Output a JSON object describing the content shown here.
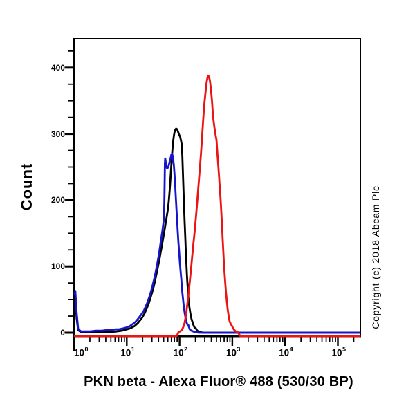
{
  "figure": {
    "background": "#ffffff",
    "copyright": "Copyright (c) 2018 Abcam Plc"
  },
  "chart_data": {
    "type": "line",
    "chart_kind": "flow-cytometry-histogram",
    "title": "PKN beta - Alexa Fluor® 488 (530/30 BP)",
    "xlabel": "PKN beta - Alexa Fluor® 488 (530/30 BP)",
    "ylabel": "Count",
    "grid": false,
    "legend": "none",
    "x_axis": {
      "scale": "log10",
      "tick_label_base": "10",
      "decade_exponents": [
        0,
        1,
        2,
        3,
        4,
        5
      ],
      "range": [
        1,
        260000
      ]
    },
    "y_axis": {
      "range": [
        0,
        443
      ],
      "major_ticks": [
        0,
        100,
        200,
        300,
        400
      ],
      "minor_tick_step": 25
    },
    "series": [
      {
        "name": "black",
        "color": "#000000",
        "points": [
          [
            1.0,
            48
          ],
          [
            1.06,
            52
          ],
          [
            1.12,
            22
          ],
          [
            1.2,
            4
          ],
          [
            1.35,
            1
          ],
          [
            2,
            1
          ],
          [
            3,
            1
          ],
          [
            4,
            1
          ],
          [
            5,
            1
          ],
          [
            6.5,
            2
          ],
          [
            8,
            3
          ],
          [
            10,
            5
          ],
          [
            12,
            7
          ],
          [
            14,
            10
          ],
          [
            16,
            14
          ],
          [
            18,
            19
          ],
          [
            20,
            24
          ],
          [
            22,
            30
          ],
          [
            24,
            37
          ],
          [
            26,
            44
          ],
          [
            28,
            52
          ],
          [
            30,
            60
          ],
          [
            32,
            68
          ],
          [
            34,
            77
          ],
          [
            36,
            86
          ],
          [
            38,
            95
          ],
          [
            40,
            104
          ],
          [
            42,
            113
          ],
          [
            44,
            122
          ],
          [
            46,
            130
          ],
          [
            48,
            139
          ],
          [
            50,
            147
          ],
          [
            52,
            155
          ],
          [
            54,
            163
          ],
          [
            56,
            171
          ],
          [
            58,
            178
          ],
          [
            60,
            186
          ],
          [
            62,
            196
          ],
          [
            64,
            208
          ],
          [
            66,
            222
          ],
          [
            68,
            238
          ],
          [
            70,
            254
          ],
          [
            72,
            268
          ],
          [
            74,
            280
          ],
          [
            76,
            290
          ],
          [
            78,
            297
          ],
          [
            80,
            302
          ],
          [
            83,
            306
          ],
          [
            86,
            308
          ],
          [
            90,
            307
          ],
          [
            94,
            303
          ],
          [
            98,
            299
          ],
          [
            102,
            296
          ],
          [
            106,
            291
          ],
          [
            110,
            284
          ],
          [
            113,
            268
          ],
          [
            116,
            240
          ],
          [
            119,
            212
          ],
          [
            122,
            188
          ],
          [
            125,
            166
          ],
          [
            128,
            146
          ],
          [
            131,
            127
          ],
          [
            134,
            109
          ],
          [
            137,
            93
          ],
          [
            140,
            79
          ],
          [
            143,
            67
          ],
          [
            146,
            57
          ],
          [
            150,
            46
          ],
          [
            154,
            38
          ],
          [
            158,
            32
          ],
          [
            163,
            26
          ],
          [
            168,
            21
          ],
          [
            174,
            17
          ],
          [
            180,
            13
          ],
          [
            187,
            10
          ],
          [
            195,
            7
          ],
          [
            202,
            7
          ],
          [
            216,
            3
          ],
          [
            230,
            2
          ],
          [
            248,
            1
          ],
          [
            275,
            0
          ],
          [
            400,
            0
          ],
          [
            1000,
            0
          ],
          [
            5000,
            0
          ],
          [
            30000,
            0
          ],
          [
            260000,
            0
          ]
        ]
      },
      {
        "name": "blue",
        "color": "#1515cd",
        "points": [
          [
            1.0,
            58
          ],
          [
            1.06,
            63
          ],
          [
            1.12,
            30
          ],
          [
            1.2,
            6
          ],
          [
            1.35,
            2
          ],
          [
            2,
            2
          ],
          [
            2.6,
            3
          ],
          [
            3.4,
            3
          ],
          [
            4.2,
            4
          ],
          [
            5,
            4
          ],
          [
            6,
            5
          ],
          [
            7,
            5
          ],
          [
            8,
            6
          ],
          [
            9,
            7
          ],
          [
            10,
            8
          ],
          [
            11.5,
            10
          ],
          [
            13,
            13
          ],
          [
            14.5,
            16
          ],
          [
            16,
            20
          ],
          [
            17.5,
            24
          ],
          [
            19,
            28
          ],
          [
            21,
            33
          ],
          [
            23,
            40
          ],
          [
            25,
            47
          ],
          [
            27,
            55
          ],
          [
            29,
            63
          ],
          [
            31,
            72
          ],
          [
            33,
            81
          ],
          [
            35,
            90
          ],
          [
            37,
            100
          ],
          [
            39,
            110
          ],
          [
            41,
            120
          ],
          [
            43,
            131
          ],
          [
            45,
            142
          ],
          [
            47,
            152
          ],
          [
            49,
            163
          ],
          [
            50.5,
            172
          ],
          [
            51.5,
            195
          ],
          [
            52.2,
            230
          ],
          [
            52.8,
            255
          ],
          [
            53.5,
            263
          ],
          [
            54.5,
            258
          ],
          [
            56,
            251
          ],
          [
            58,
            248
          ],
          [
            60,
            249
          ],
          [
            62,
            252
          ],
          [
            64,
            256
          ],
          [
            66,
            260
          ],
          [
            68,
            264
          ],
          [
            70,
            269
          ],
          [
            72,
            270
          ],
          [
            74,
            267
          ],
          [
            76,
            261
          ],
          [
            78,
            252
          ],
          [
            80,
            241
          ],
          [
            83,
            220
          ],
          [
            86,
            197
          ],
          [
            89,
            176
          ],
          [
            92,
            156
          ],
          [
            95,
            137
          ],
          [
            98,
            124
          ],
          [
            101,
            108
          ],
          [
            104,
            95
          ],
          [
            108,
            80
          ],
          [
            112,
            63
          ],
          [
            116,
            52
          ],
          [
            121,
            38
          ],
          [
            126,
            28
          ],
          [
            132,
            20
          ],
          [
            139,
            13
          ],
          [
            146,
            12
          ],
          [
            156,
            5
          ],
          [
            167,
            3
          ],
          [
            180,
            2
          ],
          [
            200,
            1
          ],
          [
            230,
            0
          ],
          [
            500,
            0
          ],
          [
            5000,
            0
          ],
          [
            100000,
            0
          ],
          [
            260000,
            0
          ]
        ]
      },
      {
        "name": "red",
        "color": "#ec1313",
        "points": [
          [
            1,
            0
          ],
          [
            3,
            0
          ],
          [
            8,
            0
          ],
          [
            20,
            0
          ],
          [
            45,
            0
          ],
          [
            70,
            0
          ],
          [
            88,
            0
          ],
          [
            96,
            1
          ],
          [
            103,
            2
          ],
          [
            110,
            4
          ],
          [
            117,
            8
          ],
          [
            124,
            14
          ],
          [
            131,
            24
          ],
          [
            138,
            38
          ],
          [
            146,
            54
          ],
          [
            154,
            72
          ],
          [
            163,
            92
          ],
          [
            172,
            112
          ],
          [
            182,
            132
          ],
          [
            192,
            150
          ],
          [
            203,
            172
          ],
          [
            215,
            196
          ],
          [
            228,
            221
          ],
          [
            242,
            247
          ],
          [
            256,
            272
          ],
          [
            266,
            292
          ],
          [
            280,
            320
          ],
          [
            295,
            345
          ],
          [
            309,
            361
          ],
          [
            322,
            375
          ],
          [
            336,
            384
          ],
          [
            350,
            388
          ],
          [
            364,
            386
          ],
          [
            378,
            379
          ],
          [
            394,
            367
          ],
          [
            412,
            350
          ],
          [
            431,
            327
          ],
          [
            452,
            313
          ],
          [
            478,
            300
          ],
          [
            501,
            291
          ],
          [
            525,
            268
          ],
          [
            550,
            245
          ],
          [
            575,
            222
          ],
          [
            600,
            200
          ],
          [
            628,
            172
          ],
          [
            658,
            140
          ],
          [
            698,
            100
          ],
          [
            728,
            79
          ],
          [
            758,
            61
          ],
          [
            787,
            47
          ],
          [
            818,
            35
          ],
          [
            852,
            25
          ],
          [
            890,
            17
          ],
          [
            935,
            13
          ],
          [
            973,
            11
          ],
          [
            1030,
            7
          ],
          [
            1090,
            4
          ],
          [
            1160,
            2
          ],
          [
            1260,
            1
          ],
          [
            1420,
            0
          ],
          [
            2500,
            0
          ],
          [
            8000,
            0
          ],
          [
            30000,
            0
          ],
          [
            120000,
            0
          ],
          [
            260000,
            0
          ]
        ]
      }
    ]
  }
}
